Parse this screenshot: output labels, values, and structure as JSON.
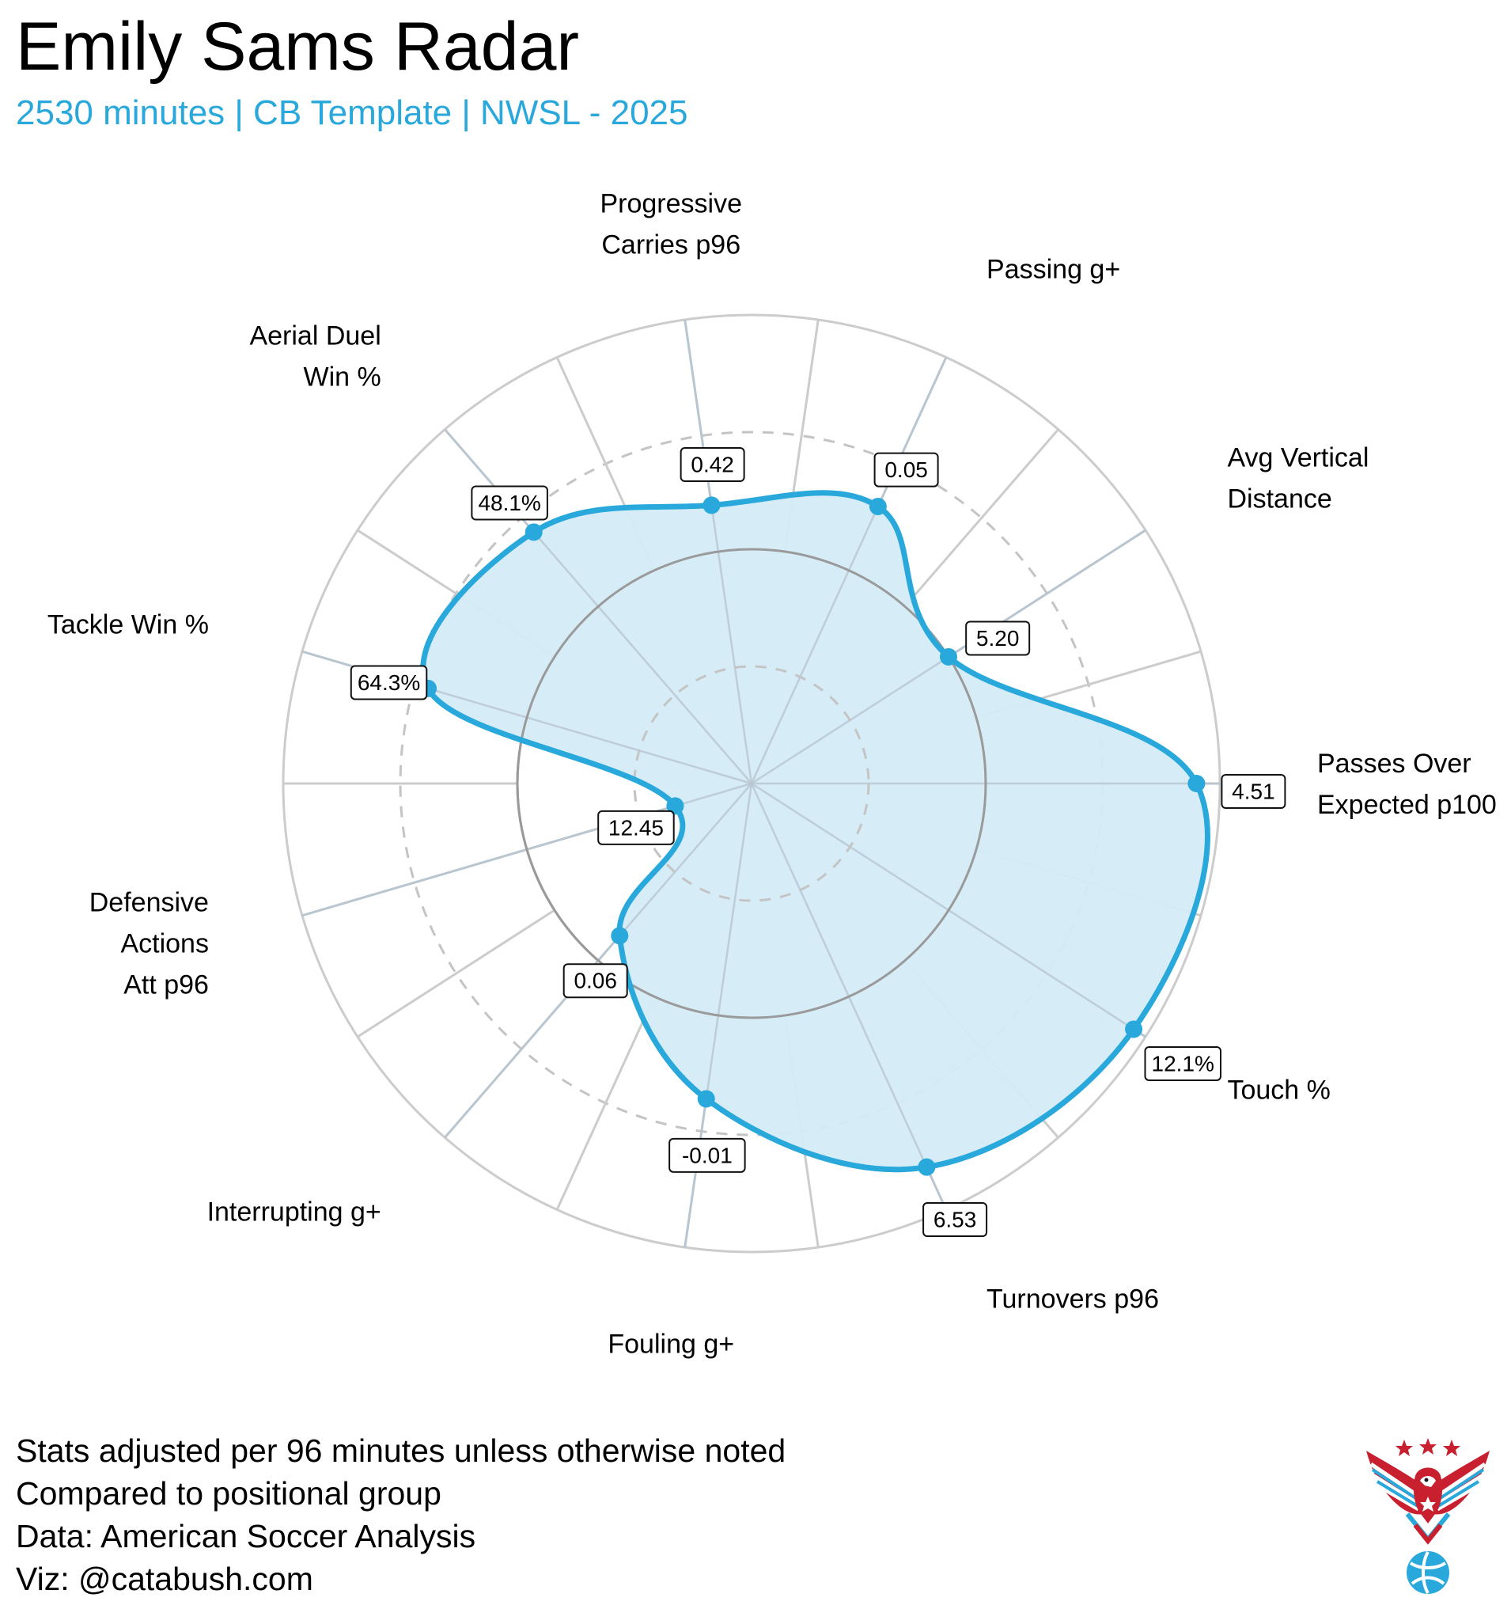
{
  "title": "Emily Sams Radar",
  "subtitle": "2530 minutes | CB Template | NWSL - 2025",
  "colors": {
    "accent": "#29a8dc",
    "fill": "#d4ecf8",
    "grid": "#cccccc",
    "axis": "#b9c6cf"
  },
  "chart_data": {
    "type": "radar",
    "percentile_scale": [
      0,
      100
    ],
    "rings": [
      25,
      50,
      75,
      100
    ],
    "metrics": [
      {
        "label": "Passes Over Expected p100",
        "label_lines": [
          "Passes Over",
          "Expected p100"
        ],
        "value_label": "4.51",
        "percentile": 95
      },
      {
        "label": "Avg Vertical Distance",
        "label_lines": [
          "Avg Vertical",
          "Distance"
        ],
        "value_label": "5.20",
        "percentile": 50
      },
      {
        "label": "Passing g+",
        "label_lines": [
          "Passing g+"
        ],
        "value_label": "0.05",
        "percentile": 65
      },
      {
        "label": "Progressive Carries p96",
        "label_lines": [
          "Progressive",
          "Carries p96"
        ],
        "value_label": "0.42",
        "percentile": 60
      },
      {
        "label": "Aerial Duel Win %",
        "label_lines": [
          "Aerial Duel",
          "Win %"
        ],
        "value_label": "48.1%",
        "percentile": 71
      },
      {
        "label": "Tackle Win %",
        "label_lines": [
          "Tackle Win %"
        ],
        "value_label": "64.3%",
        "percentile": 72
      },
      {
        "label": "Defensive Actions Att p96",
        "label_lines": [
          "Defensive",
          "Actions",
          "Att p96"
        ],
        "value_label": "12.45",
        "percentile": 17
      },
      {
        "label": "Interrupting g+",
        "label_lines": [
          "Interrupting g+"
        ],
        "value_label": "0.06",
        "percentile": 43
      },
      {
        "label": "Fouling g+",
        "label_lines": [
          "Fouling g+"
        ],
        "value_label": "-0.01",
        "percentile": 68
      },
      {
        "label": "Turnovers p96",
        "label_lines": [
          "Turnovers p96"
        ],
        "value_label": "6.53",
        "percentile": 90
      },
      {
        "label": "Touch %",
        "label_lines": [
          "Touch %"
        ],
        "value_label": "12.1%",
        "percentile": 97
      }
    ]
  },
  "footer": {
    "lines": [
      "Stats adjusted per 96 minutes unless otherwise noted",
      "Compared to positional group",
      "Data: American Soccer Analysis",
      "Viz: @catabush.com"
    ]
  },
  "logo": {
    "icon": "eagle-soccer-logo-icon"
  }
}
